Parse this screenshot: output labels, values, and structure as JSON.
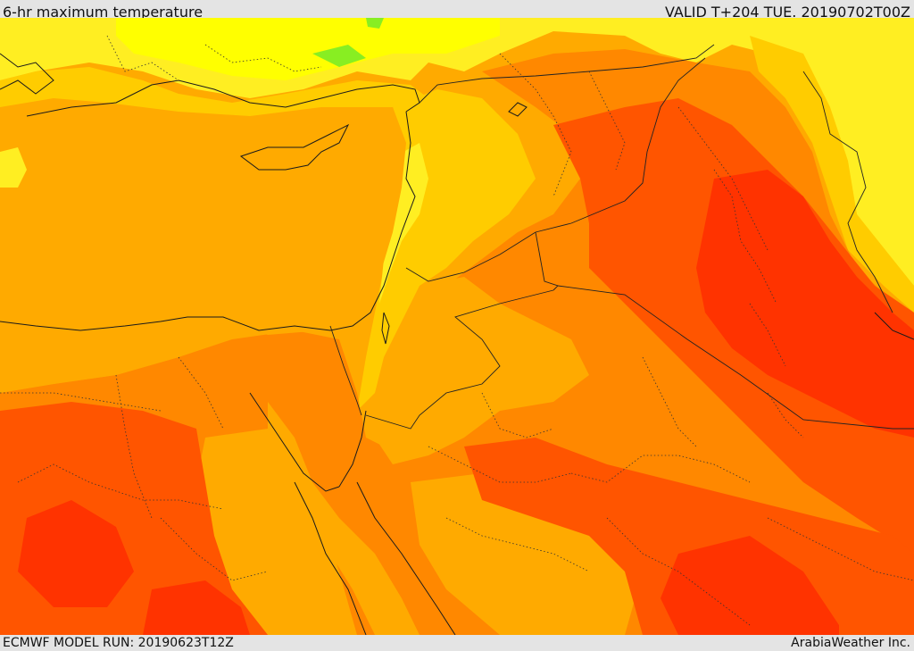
{
  "header": {
    "title": "6-hr maximum temperature",
    "valid": "VALID T+204 TUE. 20190702T00Z"
  },
  "footer": {
    "model_run": "ECMWF MODEL RUN: 20190623T12Z",
    "credit": "ArabiaWeather Inc."
  },
  "map": {
    "field": "6-hr maximum temperature",
    "palette": {
      "green": "#88ee22",
      "yellow_bright": "#ffff00",
      "yellow": "#ffee22",
      "yellow_orange": "#ffcc00",
      "orange_light": "#ffaa00",
      "orange": "#ff8800",
      "orange_red": "#ff5500",
      "red": "#ff3300"
    },
    "boundaries": {
      "coastline_color": "#1a1a1a",
      "country_border_style": "solid",
      "province_border_style": "dotted"
    }
  }
}
